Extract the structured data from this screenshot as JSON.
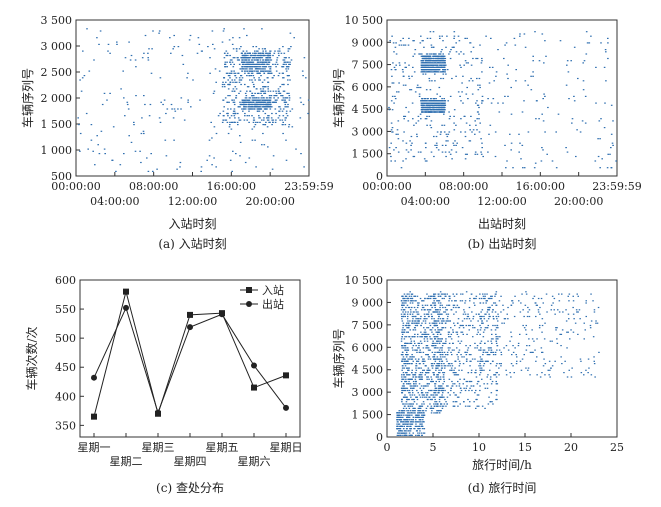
{
  "chart_data": [
    {
      "type": "scatter",
      "caption": "(a) 入站时刻",
      "xlabel": "入站时刻",
      "ylabel": "车辆序列号",
      "x_ticks_top": [
        "00:00:00",
        "08:00:00",
        "16:00:00",
        "23:59:59"
      ],
      "x_ticks_bottom": [
        "04:00:00",
        "12:00:00",
        "20:00:00"
      ],
      "x_range_hours": [
        0,
        24
      ],
      "y_ticks": [
        "500",
        "1 000",
        "1 500",
        "2 000",
        "2 500",
        "3 000",
        "3 500"
      ],
      "ylim": [
        500,
        3500
      ],
      "color": "#2f6fb0",
      "density_bands": [
        {
          "x": [
            0,
            24
          ],
          "y": [
            600,
            3350
          ],
          "weight": 1
        },
        {
          "x": [
            15,
            22
          ],
          "y": [
            1500,
            3000
          ],
          "weight": 2
        },
        {
          "x": [
            17,
            20
          ],
          "y": [
            2500,
            2900
          ],
          "weight": 1
        },
        {
          "x": [
            17,
            20
          ],
          "y": [
            1800,
            2000
          ],
          "weight": 1
        }
      ]
    },
    {
      "type": "scatter",
      "caption": "(b) 出站时刻",
      "xlabel": "出站时刻",
      "ylabel": "车辆序列号",
      "x_ticks_top": [
        "00:00:00",
        "08:00:00",
        "16:00:00",
        "23:59:59"
      ],
      "x_ticks_bottom": [
        "04:00:00",
        "12:00:00",
        "20:00:00"
      ],
      "x_range_hours": [
        0,
        24
      ],
      "y_ticks": [
        "0",
        "1 500",
        "3 000",
        "4 500",
        "6 000",
        "7 500",
        "9 000",
        "10 500"
      ],
      "ylim": [
        0,
        10500
      ],
      "color": "#2f6fb0",
      "density_bands": [
        {
          "x": [
            0,
            24
          ],
          "y": [
            500,
            9800
          ],
          "weight": 1
        },
        {
          "x": [
            3.5,
            6
          ],
          "y": [
            7000,
            8200
          ],
          "weight": 2
        },
        {
          "x": [
            3.5,
            6
          ],
          "y": [
            4300,
            5200
          ],
          "weight": 2
        },
        {
          "x": [
            0,
            10
          ],
          "y": [
            1000,
            9500
          ],
          "weight": 1
        }
      ]
    },
    {
      "type": "line",
      "caption": "(c) 查处分布",
      "xlabel": "",
      "ylabel": "车辆次数/次",
      "categories": [
        "星期一",
        "星期二",
        "星期三",
        "星期四",
        "星期五",
        "星期六",
        "星期日"
      ],
      "category_rows": [
        0,
        1,
        0,
        1,
        0,
        1,
        0
      ],
      "y_ticks": [
        "350",
        "400",
        "450",
        "500",
        "550",
        "600"
      ],
      "ylim": [
        330,
        600
      ],
      "series": [
        {
          "name": "入站",
          "marker": "square",
          "x": [
            1,
            2,
            3,
            4,
            5,
            6,
            7
          ],
          "values": [
            365,
            580,
            370,
            540,
            543,
            415,
            436
          ]
        },
        {
          "name": "出站",
          "marker": "circle",
          "x": [
            1,
            2,
            3,
            4,
            5,
            6,
            7
          ],
          "values": [
            432,
            552,
            372,
            519,
            541,
            453,
            380
          ]
        }
      ],
      "legend": "top-right"
    },
    {
      "type": "scatter",
      "caption": "(d) 旅行时间",
      "xlabel": "旅行时间/h",
      "ylabel": "车辆序列号",
      "x_ticks": [
        "0",
        "5",
        "10",
        "15",
        "20",
        "25"
      ],
      "xlim": [
        0,
        25
      ],
      "y_ticks": [
        "0",
        "1 500",
        "3 000",
        "4 500",
        "6 000",
        "7 500",
        "9 000",
        "10 500"
      ],
      "ylim": [
        0,
        10500
      ],
      "color": "#2f6fb0",
      "density_bands": [
        {
          "x": [
            1.5,
            6
          ],
          "y": [
            1500,
            9700
          ],
          "weight": 3
        },
        {
          "x": [
            5,
            12
          ],
          "y": [
            2000,
            9700
          ],
          "weight": 2
        },
        {
          "x": [
            10,
            23
          ],
          "y": [
            4000,
            9700
          ],
          "weight": 1
        },
        {
          "x": [
            1,
            4
          ],
          "y": [
            0,
            1800
          ],
          "weight": 1
        }
      ]
    }
  ]
}
